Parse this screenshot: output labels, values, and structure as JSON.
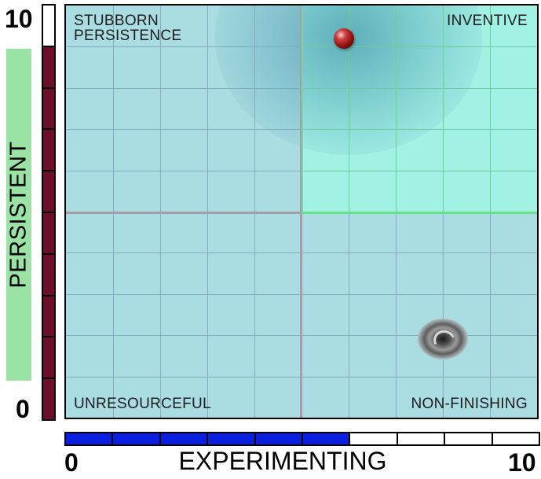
{
  "chart_data": {
    "type": "scatter",
    "xlabel": "EXPERIMENTING",
    "ylabel": "PERSISTENT",
    "xlim": [
      0,
      10
    ],
    "ylim": [
      0,
      10
    ],
    "x_ticks": [
      "0",
      "10"
    ],
    "y_ticks": [
      "0",
      "10"
    ],
    "grid": true,
    "quadrants": {
      "top_left": "STUBBORN\nPERSISTENCE",
      "top_right": "INVENTIVE",
      "bottom_left": "UNRESOURCEFUL",
      "bottom_right": "NON-FINISHING"
    },
    "markers": [
      {
        "kind": "ball",
        "x": 5.9,
        "y": 9.2,
        "color": "#a01818"
      },
      {
        "kind": "swirl",
        "x": 8.0,
        "y": 1.9,
        "color": "#555555"
      }
    ],
    "x_progress": {
      "filled_segments": 6,
      "total_segments": 10,
      "fill_color": "#0a1fe0"
    },
    "y_progress": {
      "filled_segments": 9,
      "total_segments": 10,
      "fill_color": "#6d0f2a"
    },
    "colors": {
      "plot_background": "#a9dde2",
      "highlight_quadrant": "#a2f1e5",
      "ylabel_background": "#9be3a5"
    }
  }
}
